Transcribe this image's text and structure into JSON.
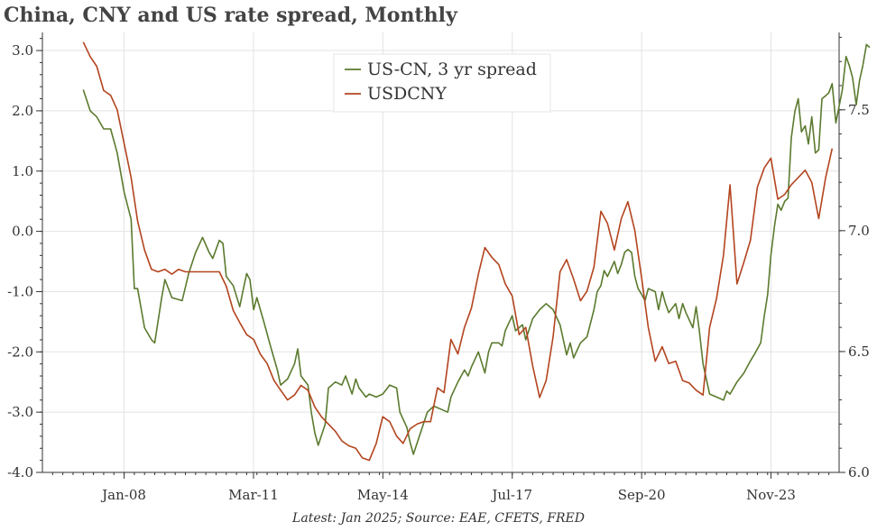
{
  "title": "China, CNY and US rate spread, Monthly",
  "source": "Latest: Jan 2025; Source: EAE, CFETS, FRED",
  "chart_data": {
    "type": "line",
    "title": "China, CNY and US rate spread, Monthly",
    "grid": true,
    "legend_position": "top-center",
    "x_ticks": [
      {
        "label": "Jan-08",
        "x": 2008.0
      },
      {
        "label": "Mar-11",
        "x": 2011.167
      },
      {
        "label": "May-14",
        "x": 2014.333
      },
      {
        "label": "Jul-17",
        "x": 2017.5
      },
      {
        "label": "Sep-20",
        "x": 2020.667
      },
      {
        "label": "Nov-23",
        "x": 2023.833
      }
    ],
    "xlim": [
      2006.0,
      2025.5
    ],
    "y_left": {
      "ylim": [
        -4.0,
        3.3
      ],
      "ticks": [
        "-4.0",
        "-3.0",
        "-2.0",
        "-1.0",
        "0.0",
        "1.0",
        "2.0",
        "3.0"
      ]
    },
    "y_right": {
      "ylim": [
        6.0,
        7.82
      ],
      "ticks": [
        "6.0",
        "6.5",
        "7.0",
        "7.5"
      ]
    },
    "series": [
      {
        "name": "US-CN, 3 yr spread",
        "color": "#5b7a2e",
        "axis": "left",
        "points": [
          [
            2007.0,
            2.35
          ],
          [
            2007.17,
            2.0
          ],
          [
            2007.33,
            1.9
          ],
          [
            2007.5,
            1.7
          ],
          [
            2007.67,
            1.7
          ],
          [
            2007.83,
            1.3
          ],
          [
            2008.0,
            0.65
          ],
          [
            2008.17,
            0.2
          ],
          [
            2008.25,
            -0.95
          ],
          [
            2008.33,
            -0.95
          ],
          [
            2008.5,
            -1.6
          ],
          [
            2008.67,
            -1.8
          ],
          [
            2008.75,
            -1.85
          ],
          [
            2008.92,
            -1.1
          ],
          [
            2009.0,
            -0.8
          ],
          [
            2009.17,
            -1.1
          ],
          [
            2009.42,
            -1.15
          ],
          [
            2009.58,
            -0.7
          ],
          [
            2009.75,
            -0.35
          ],
          [
            2009.92,
            -0.1
          ],
          [
            2010.08,
            -0.35
          ],
          [
            2010.17,
            -0.45
          ],
          [
            2010.33,
            -0.15
          ],
          [
            2010.42,
            -0.2
          ],
          [
            2010.5,
            -0.75
          ],
          [
            2010.67,
            -0.9
          ],
          [
            2010.83,
            -1.25
          ],
          [
            2010.92,
            -0.95
          ],
          [
            2011.0,
            -0.7
          ],
          [
            2011.08,
            -0.8
          ],
          [
            2011.17,
            -1.3
          ],
          [
            2011.25,
            -1.1
          ],
          [
            2011.42,
            -1.5
          ],
          [
            2011.58,
            -1.9
          ],
          [
            2011.75,
            -2.3
          ],
          [
            2011.83,
            -2.55
          ],
          [
            2012.0,
            -2.45
          ],
          [
            2012.17,
            -2.2
          ],
          [
            2012.25,
            -1.95
          ],
          [
            2012.33,
            -2.4
          ],
          [
            2012.5,
            -2.55
          ],
          [
            2012.58,
            -3.0
          ],
          [
            2012.67,
            -3.35
          ],
          [
            2012.75,
            -3.55
          ],
          [
            2012.92,
            -3.2
          ],
          [
            2013.0,
            -2.6
          ],
          [
            2013.17,
            -2.5
          ],
          [
            2013.33,
            -2.55
          ],
          [
            2013.42,
            -2.4
          ],
          [
            2013.58,
            -2.7
          ],
          [
            2013.67,
            -2.45
          ],
          [
            2013.75,
            -2.6
          ],
          [
            2013.92,
            -2.75
          ],
          [
            2014.0,
            -2.7
          ],
          [
            2014.17,
            -2.75
          ],
          [
            2014.33,
            -2.7
          ],
          [
            2014.5,
            -2.55
          ],
          [
            2014.67,
            -2.6
          ],
          [
            2014.75,
            -3.0
          ],
          [
            2014.92,
            -3.25
          ],
          [
            2015.0,
            -3.5
          ],
          [
            2015.08,
            -3.7
          ],
          [
            2015.25,
            -3.35
          ],
          [
            2015.42,
            -3.0
          ],
          [
            2015.58,
            -2.9
          ],
          [
            2015.75,
            -2.95
          ],
          [
            2015.92,
            -3.0
          ],
          [
            2016.0,
            -2.75
          ],
          [
            2016.17,
            -2.5
          ],
          [
            2016.33,
            -2.3
          ],
          [
            2016.42,
            -2.4
          ],
          [
            2016.5,
            -2.25
          ],
          [
            2016.67,
            -2.0
          ],
          [
            2016.83,
            -2.35
          ],
          [
            2016.92,
            -2.0
          ],
          [
            2017.0,
            -1.85
          ],
          [
            2017.17,
            -1.85
          ],
          [
            2017.25,
            -1.9
          ],
          [
            2017.33,
            -1.65
          ],
          [
            2017.5,
            -1.4
          ],
          [
            2017.58,
            -1.65
          ],
          [
            2017.75,
            -1.55
          ],
          [
            2017.83,
            -1.8
          ],
          [
            2018.0,
            -1.45
          ],
          [
            2018.17,
            -1.3
          ],
          [
            2018.33,
            -1.2
          ],
          [
            2018.5,
            -1.3
          ],
          [
            2018.67,
            -1.55
          ],
          [
            2018.83,
            -2.05
          ],
          [
            2018.92,
            -1.85
          ],
          [
            2019.0,
            -2.1
          ],
          [
            2019.17,
            -1.85
          ],
          [
            2019.33,
            -1.75
          ],
          [
            2019.5,
            -1.3
          ],
          [
            2019.58,
            -1.0
          ],
          [
            2019.67,
            -0.9
          ],
          [
            2019.75,
            -0.65
          ],
          [
            2019.83,
            -0.75
          ],
          [
            2020.0,
            -0.5
          ],
          [
            2020.08,
            -0.7
          ],
          [
            2020.17,
            -0.55
          ],
          [
            2020.25,
            -0.35
          ],
          [
            2020.33,
            -0.3
          ],
          [
            2020.42,
            -0.35
          ],
          [
            2020.5,
            -0.75
          ],
          [
            2020.58,
            -0.95
          ],
          [
            2020.67,
            -1.05
          ],
          [
            2020.75,
            -1.15
          ],
          [
            2020.83,
            -0.95
          ],
          [
            2021.0,
            -1.0
          ],
          [
            2021.08,
            -1.3
          ],
          [
            2021.17,
            -1.0
          ],
          [
            2021.25,
            -1.2
          ],
          [
            2021.33,
            -1.35
          ],
          [
            2021.5,
            -1.2
          ],
          [
            2021.58,
            -1.45
          ],
          [
            2021.67,
            -1.2
          ],
          [
            2021.75,
            -1.35
          ],
          [
            2021.92,
            -1.6
          ],
          [
            2022.0,
            -1.25
          ],
          [
            2022.08,
            -1.65
          ],
          [
            2022.17,
            -2.2
          ],
          [
            2022.33,
            -2.7
          ],
          [
            2022.5,
            -2.75
          ],
          [
            2022.67,
            -2.8
          ],
          [
            2022.75,
            -2.65
          ],
          [
            2022.83,
            -2.7
          ],
          [
            2023.0,
            -2.5
          ],
          [
            2023.17,
            -2.35
          ],
          [
            2023.33,
            -2.15
          ],
          [
            2023.42,
            -2.05
          ],
          [
            2023.5,
            -1.95
          ],
          [
            2023.58,
            -1.85
          ],
          [
            2023.67,
            -1.4
          ],
          [
            2023.75,
            -1.05
          ],
          [
            2023.83,
            -0.4
          ],
          [
            2023.92,
            0.1
          ],
          [
            2024.0,
            0.45
          ],
          [
            2024.08,
            0.35
          ],
          [
            2024.17,
            0.5
          ],
          [
            2024.25,
            0.55
          ],
          [
            2024.33,
            1.55
          ],
          [
            2024.42,
            2.0
          ],
          [
            2024.5,
            2.2
          ],
          [
            2024.58,
            1.65
          ],
          [
            2024.67,
            1.75
          ],
          [
            2024.75,
            1.45
          ],
          [
            2024.83,
            1.9
          ],
          [
            2024.92,
            1.3
          ],
          [
            2025.0,
            1.35
          ],
          [
            2025.08,
            2.2
          ],
          [
            2025.17,
            2.25
          ],
          [
            2025.25,
            2.3
          ],
          [
            2025.33,
            2.45
          ],
          [
            2025.42,
            1.8
          ],
          [
            2025.58,
            2.35
          ],
          [
            2025.67,
            2.9
          ],
          [
            2025.75,
            2.75
          ],
          [
            2025.83,
            2.55
          ],
          [
            2025.92,
            2.1
          ],
          [
            2026.0,
            2.5
          ],
          [
            2026.08,
            2.75
          ],
          [
            2026.17,
            3.1
          ],
          [
            2026.25,
            3.05
          ]
        ]
      },
      {
        "name": "USDCNY",
        "color": "#b3441e",
        "axis": "right",
        "points": [
          [
            2007.0,
            7.78
          ],
          [
            2007.17,
            7.72
          ],
          [
            2007.33,
            7.68
          ],
          [
            2007.5,
            7.58
          ],
          [
            2007.67,
            7.56
          ],
          [
            2007.83,
            7.5
          ],
          [
            2008.0,
            7.36
          ],
          [
            2008.17,
            7.22
          ],
          [
            2008.33,
            7.04
          ],
          [
            2008.5,
            6.92
          ],
          [
            2008.67,
            6.84
          ],
          [
            2008.83,
            6.83
          ],
          [
            2009.0,
            6.84
          ],
          [
            2009.17,
            6.82
          ],
          [
            2009.33,
            6.84
          ],
          [
            2009.5,
            6.83
          ],
          [
            2009.67,
            6.83
          ],
          [
            2009.83,
            6.83
          ],
          [
            2010.0,
            6.83
          ],
          [
            2010.17,
            6.83
          ],
          [
            2010.33,
            6.83
          ],
          [
            2010.5,
            6.77
          ],
          [
            2010.67,
            6.67
          ],
          [
            2010.83,
            6.62
          ],
          [
            2011.0,
            6.57
          ],
          [
            2011.17,
            6.55
          ],
          [
            2011.33,
            6.49
          ],
          [
            2011.5,
            6.45
          ],
          [
            2011.67,
            6.38
          ],
          [
            2011.83,
            6.34
          ],
          [
            2012.0,
            6.3
          ],
          [
            2012.17,
            6.32
          ],
          [
            2012.33,
            6.36
          ],
          [
            2012.5,
            6.34
          ],
          [
            2012.67,
            6.27
          ],
          [
            2012.83,
            6.23
          ],
          [
            2013.0,
            6.2
          ],
          [
            2013.17,
            6.17
          ],
          [
            2013.33,
            6.13
          ],
          [
            2013.5,
            6.11
          ],
          [
            2013.67,
            6.1
          ],
          [
            2013.83,
            6.06
          ],
          [
            2014.0,
            6.05
          ],
          [
            2014.17,
            6.12
          ],
          [
            2014.33,
            6.23
          ],
          [
            2014.5,
            6.21
          ],
          [
            2014.67,
            6.15
          ],
          [
            2014.83,
            6.12
          ],
          [
            2015.0,
            6.18
          ],
          [
            2015.17,
            6.2
          ],
          [
            2015.33,
            6.21
          ],
          [
            2015.5,
            6.21
          ],
          [
            2015.67,
            6.35
          ],
          [
            2015.83,
            6.33
          ],
          [
            2016.0,
            6.55
          ],
          [
            2016.17,
            6.49
          ],
          [
            2016.33,
            6.6
          ],
          [
            2016.5,
            6.68
          ],
          [
            2016.67,
            6.82
          ],
          [
            2016.83,
            6.93
          ],
          [
            2017.0,
            6.89
          ],
          [
            2017.17,
            6.86
          ],
          [
            2017.33,
            6.78
          ],
          [
            2017.5,
            6.73
          ],
          [
            2017.67,
            6.57
          ],
          [
            2017.83,
            6.6
          ],
          [
            2018.0,
            6.44
          ],
          [
            2018.17,
            6.31
          ],
          [
            2018.33,
            6.38
          ],
          [
            2018.5,
            6.56
          ],
          [
            2018.67,
            6.83
          ],
          [
            2018.83,
            6.88
          ],
          [
            2019.0,
            6.8
          ],
          [
            2019.17,
            6.71
          ],
          [
            2019.33,
            6.75
          ],
          [
            2019.5,
            6.85
          ],
          [
            2019.67,
            7.08
          ],
          [
            2019.83,
            7.03
          ],
          [
            2020.0,
            6.92
          ],
          [
            2020.17,
            7.05
          ],
          [
            2020.33,
            7.12
          ],
          [
            2020.5,
            7.0
          ],
          [
            2020.67,
            6.8
          ],
          [
            2020.83,
            6.6
          ],
          [
            2021.0,
            6.46
          ],
          [
            2021.17,
            6.52
          ],
          [
            2021.33,
            6.45
          ],
          [
            2021.5,
            6.46
          ],
          [
            2021.67,
            6.38
          ],
          [
            2021.83,
            6.37
          ],
          [
            2022.0,
            6.34
          ],
          [
            2022.17,
            6.32
          ],
          [
            2022.33,
            6.6
          ],
          [
            2022.5,
            6.72
          ],
          [
            2022.67,
            6.9
          ],
          [
            2022.83,
            7.19
          ],
          [
            2023.0,
            6.78
          ],
          [
            2023.17,
            6.87
          ],
          [
            2023.33,
            6.96
          ],
          [
            2023.5,
            7.18
          ],
          [
            2023.67,
            7.26
          ],
          [
            2023.83,
            7.3
          ],
          [
            2024.0,
            7.13
          ],
          [
            2024.17,
            7.15
          ],
          [
            2024.33,
            7.19
          ],
          [
            2024.5,
            7.22
          ],
          [
            2024.67,
            7.25
          ],
          [
            2024.83,
            7.2
          ],
          [
            2025.0,
            7.05
          ],
          [
            2025.17,
            7.22
          ],
          [
            2025.33,
            7.34
          ]
        ]
      }
    ]
  }
}
